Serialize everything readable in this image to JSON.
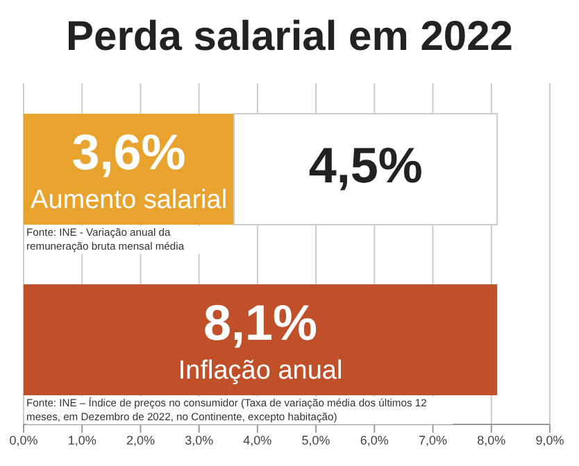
{
  "chart_data": {
    "type": "bar",
    "orientation": "horizontal",
    "stacked": true,
    "title": "Perda salarial em 2022",
    "categories": [
      "Aumento salarial",
      "Inflação anual"
    ],
    "series": [
      {
        "colors": [
          "#e8a22e",
          "#c0502a"
        ],
        "values": [
          3.6,
          8.1
        ],
        "value_labels": [
          "3,6%",
          "8,1%"
        ]
      },
      {
        "color": "#ffffff",
        "values": [
          4.5,
          null
        ],
        "value_labels": [
          "4,5%",
          null
        ]
      }
    ],
    "xlim": [
      0,
      9
    ],
    "xticks": [
      {
        "value": 0,
        "label": "0,0%"
      },
      {
        "value": 1,
        "label": "1,0%"
      },
      {
        "value": 2,
        "label": "2,0%"
      },
      {
        "value": 3,
        "label": "3,0%"
      },
      {
        "value": 4,
        "label": "4,0%"
      },
      {
        "value": 5,
        "label": "5,0%"
      },
      {
        "value": 6,
        "label": "6,0%"
      },
      {
        "value": 7,
        "label": "7,0%"
      },
      {
        "value": 8,
        "label": "8,0%"
      },
      {
        "value": 9,
        "label": "9,0%"
      }
    ],
    "grid": "x",
    "annotations": [
      "Fonte: INE - Variação anual da remuneração bruta mensal média",
      "Fonte: INE – Índice de preços no consumidor (Taxa de variação média dos últimos 12 meses, em Dezembro de 2022, no Continente, excepto habitação)"
    ]
  }
}
